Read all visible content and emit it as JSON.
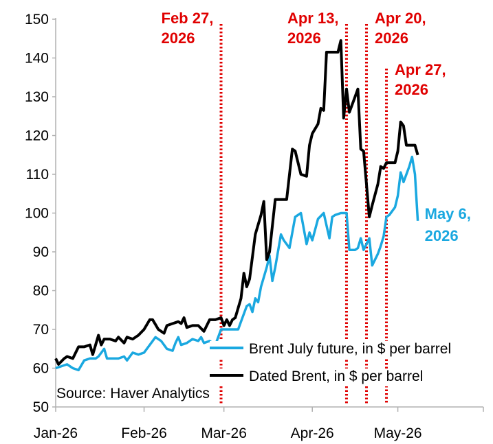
{
  "chart_data": {
    "type": "line",
    "source": "Source: Haver Analytics",
    "ylim": [
      50,
      150
    ],
    "yticks": [
      50,
      60,
      70,
      80,
      90,
      100,
      110,
      120,
      130,
      140,
      150
    ],
    "xlim": [
      "2026-01-01",
      "2026-05-31"
    ],
    "xticks": [
      {
        "date": "2026-01-01",
        "label": "Jan-26"
      },
      {
        "date": "2026-02-01",
        "label": "Feb-26"
      },
      {
        "date": "2026-03-01",
        "label": "Mar-26"
      },
      {
        "date": "2026-04-01",
        "label": "Apr-26"
      },
      {
        "date": "2026-05-01",
        "label": "May-26"
      }
    ],
    "legend_position": "bottom-right",
    "grid": false,
    "series": [
      {
        "name": "Brent July future, in $ per barrel",
        "color": "#1aa8e0",
        "points": [
          [
            "2026-01-01",
            60.0
          ],
          [
            "2026-01-05",
            61.0
          ],
          [
            "2026-01-07",
            60.0
          ],
          [
            "2026-01-09",
            59.5
          ],
          [
            "2026-01-11",
            62.0
          ],
          [
            "2026-01-13",
            62.5
          ],
          [
            "2026-01-15",
            62.5
          ],
          [
            "2026-01-16",
            63.0
          ],
          [
            "2026-01-18",
            65.0
          ],
          [
            "2026-01-19",
            62.5
          ],
          [
            "2026-01-21",
            62.5
          ],
          [
            "2026-01-23",
            62.5
          ],
          [
            "2026-01-25",
            63.0
          ],
          [
            "2026-01-26",
            62.0
          ],
          [
            "2026-01-28",
            64.0
          ],
          [
            "2026-01-30",
            63.5
          ],
          [
            "2026-02-01",
            64.0
          ],
          [
            "2026-02-03",
            66.0
          ],
          [
            "2026-02-05",
            68.0
          ],
          [
            "2026-02-07",
            67.0
          ],
          [
            "2026-02-09",
            65.0
          ],
          [
            "2026-02-11",
            64.5
          ],
          [
            "2026-02-12",
            66.5
          ],
          [
            "2026-02-13",
            68.0
          ],
          [
            "2026-02-14",
            66.0
          ],
          [
            "2026-02-16",
            66.5
          ],
          [
            "2026-02-18",
            67.5
          ],
          [
            "2026-02-20",
            67.0
          ],
          [
            "2026-02-21",
            68.0
          ],
          [
            "2026-02-22",
            66.5
          ],
          [
            "2026-02-24",
            67.0
          ],
          [
            "2026-02-26",
            66.0
          ],
          [
            "2026-02-28",
            70.0
          ],
          [
            "2026-03-02",
            70.0
          ],
          [
            "2026-03-04",
            70.0
          ],
          [
            "2026-03-06",
            70.0
          ],
          [
            "2026-03-07",
            72.0
          ],
          [
            "2026-03-09",
            76.0
          ],
          [
            "2026-03-10",
            76.5
          ],
          [
            "2026-03-11",
            74.5
          ],
          [
            "2026-03-12",
            78.0
          ],
          [
            "2026-03-13",
            77.0
          ],
          [
            "2026-03-14",
            81.0
          ],
          [
            "2026-03-16",
            86.0
          ],
          [
            "2026-03-17",
            89.0
          ],
          [
            "2026-03-18",
            82.5
          ],
          [
            "2026-03-19",
            86.0
          ],
          [
            "2026-03-21",
            94.5
          ],
          [
            "2026-03-22",
            93.0
          ],
          [
            "2026-03-24",
            91.0
          ],
          [
            "2026-03-26",
            99.0
          ],
          [
            "2026-03-28",
            100.0
          ],
          [
            "2026-03-30",
            92.0
          ],
          [
            "2026-03-31",
            95.0
          ],
          [
            "2026-04-01",
            93.0
          ],
          [
            "2026-04-03",
            98.5
          ],
          [
            "2026-04-05",
            100.0
          ],
          [
            "2026-04-07",
            93.5
          ],
          [
            "2026-04-08",
            99.0
          ],
          [
            "2026-04-09",
            99.5
          ],
          [
            "2026-04-11",
            100.0
          ],
          [
            "2026-04-13",
            100.0
          ],
          [
            "2026-04-14",
            90.5
          ],
          [
            "2026-04-15",
            90.5
          ],
          [
            "2026-04-16",
            90.5
          ],
          [
            "2026-04-17",
            91.0
          ],
          [
            "2026-04-18",
            93.5
          ],
          [
            "2026-04-19",
            90.5
          ],
          [
            "2026-04-21",
            93.5
          ],
          [
            "2026-04-22",
            86.5
          ],
          [
            "2026-04-24",
            89.5
          ],
          [
            "2026-04-25",
            91.5
          ],
          [
            "2026-04-26",
            94.0
          ],
          [
            "2026-04-27",
            99.0
          ],
          [
            "2026-04-28",
            99.5
          ],
          [
            "2026-04-30",
            101.5
          ],
          [
            "2026-05-01",
            104.5
          ],
          [
            "2026-05-02",
            110.5
          ],
          [
            "2026-05-03",
            108.0
          ],
          [
            "2026-05-05",
            112.0
          ],
          [
            "2026-05-06",
            114.5
          ],
          [
            "2026-05-07",
            110.0
          ],
          [
            "2026-05-08",
            98.0
          ]
        ]
      },
      {
        "name": "Dated Brent, in $ per barrel",
        "color": "#000000",
        "points": [
          [
            "2026-01-01",
            62.5
          ],
          [
            "2026-01-02",
            61.0
          ],
          [
            "2026-01-04",
            62.5
          ],
          [
            "2026-01-05",
            63.0
          ],
          [
            "2026-01-07",
            62.5
          ],
          [
            "2026-01-09",
            65.5
          ],
          [
            "2026-01-11",
            65.5
          ],
          [
            "2026-01-13",
            66.0
          ],
          [
            "2026-01-14",
            63.5
          ],
          [
            "2026-01-16",
            68.5
          ],
          [
            "2026-01-17",
            66.0
          ],
          [
            "2026-01-18",
            67.5
          ],
          [
            "2026-01-20",
            67.5
          ],
          [
            "2026-01-22",
            67.0
          ],
          [
            "2026-01-23",
            68.0
          ],
          [
            "2026-01-25",
            66.5
          ],
          [
            "2026-01-26",
            68.0
          ],
          [
            "2026-01-28",
            67.5
          ],
          [
            "2026-01-30",
            68.5
          ],
          [
            "2026-02-01",
            70.0
          ],
          [
            "2026-02-03",
            72.5
          ],
          [
            "2026-02-04",
            72.5
          ],
          [
            "2026-02-06",
            70.0
          ],
          [
            "2026-02-08",
            69.0
          ],
          [
            "2026-02-09",
            71.0
          ],
          [
            "2026-02-11",
            71.5
          ],
          [
            "2026-02-13",
            72.0
          ],
          [
            "2026-02-14",
            71.5
          ],
          [
            "2026-02-15",
            73.0
          ],
          [
            "2026-02-16",
            70.5
          ],
          [
            "2026-02-18",
            71.0
          ],
          [
            "2026-02-20",
            71.0
          ],
          [
            "2026-02-22",
            69.5
          ],
          [
            "2026-02-24",
            72.5
          ],
          [
            "2026-02-26",
            72.5
          ],
          [
            "2026-02-28",
            73.0
          ],
          [
            "2026-03-01",
            71.0
          ],
          [
            "2026-03-02",
            72.5
          ],
          [
            "2026-03-03",
            71.0
          ],
          [
            "2026-03-04",
            72.5
          ],
          [
            "2026-03-05",
            73.0
          ],
          [
            "2026-03-07",
            78.0
          ],
          [
            "2026-03-08",
            84.5
          ],
          [
            "2026-03-09",
            81.0
          ],
          [
            "2026-03-10",
            83.0
          ],
          [
            "2026-03-12",
            94.5
          ],
          [
            "2026-03-14",
            99.5
          ],
          [
            "2026-03-15",
            103.0
          ],
          [
            "2026-03-16",
            88.0
          ],
          [
            "2026-03-17",
            90.0
          ],
          [
            "2026-03-19",
            103.5
          ],
          [
            "2026-03-21",
            103.5
          ],
          [
            "2026-03-23",
            103.5
          ],
          [
            "2026-03-25",
            116.5
          ],
          [
            "2026-03-26",
            116.0
          ],
          [
            "2026-03-28",
            110.0
          ],
          [
            "2026-03-30",
            109.5
          ],
          [
            "2026-03-31",
            117.5
          ],
          [
            "2026-04-01",
            120.5
          ],
          [
            "2026-04-03",
            123.0
          ],
          [
            "2026-04-04",
            127.0
          ],
          [
            "2026-04-05",
            126.5
          ],
          [
            "2026-04-06",
            141.5
          ],
          [
            "2026-04-07",
            141.5
          ],
          [
            "2026-04-08",
            141.5
          ],
          [
            "2026-04-10",
            141.5
          ],
          [
            "2026-04-11",
            144.5
          ],
          [
            "2026-04-12",
            124.5
          ],
          [
            "2026-04-13",
            132.0
          ],
          [
            "2026-04-14",
            126.0
          ],
          [
            "2026-04-16",
            130.0
          ],
          [
            "2026-04-17",
            132.0
          ],
          [
            "2026-04-18",
            116.5
          ],
          [
            "2026-04-19",
            116.0
          ],
          [
            "2026-04-21",
            99.0
          ],
          [
            "2026-04-22",
            102.0
          ],
          [
            "2026-04-24",
            107.5
          ],
          [
            "2026-04-25",
            112.0
          ],
          [
            "2026-04-26",
            111.5
          ],
          [
            "2026-04-27",
            113.0
          ],
          [
            "2026-04-28",
            113.0
          ],
          [
            "2026-04-30",
            113.0
          ],
          [
            "2026-05-01",
            116.0
          ],
          [
            "2026-05-02",
            123.5
          ],
          [
            "2026-05-03",
            122.5
          ],
          [
            "2026-05-04",
            117.5
          ],
          [
            "2026-05-05",
            117.5
          ],
          [
            "2026-05-06",
            117.5
          ],
          [
            "2026-05-07",
            117.5
          ],
          [
            "2026-05-08",
            115.0
          ]
        ]
      }
    ],
    "annotations": [
      {
        "date": "2026-02-28",
        "lines": [
          "Feb 27,",
          "2026"
        ]
      },
      {
        "date": "2026-04-13",
        "lines": [
          "Apr 13,",
          "2026"
        ]
      },
      {
        "date": "2026-04-20",
        "lines": [
          "Apr 20,",
          "2026"
        ]
      },
      {
        "date": "2026-04-27",
        "lines": [
          "Apr 27,",
          "2026"
        ]
      }
    ],
    "end_label": {
      "series": 0,
      "lines": [
        "May 6,",
        "2026"
      ]
    },
    "annotation_color": "#e00000"
  }
}
